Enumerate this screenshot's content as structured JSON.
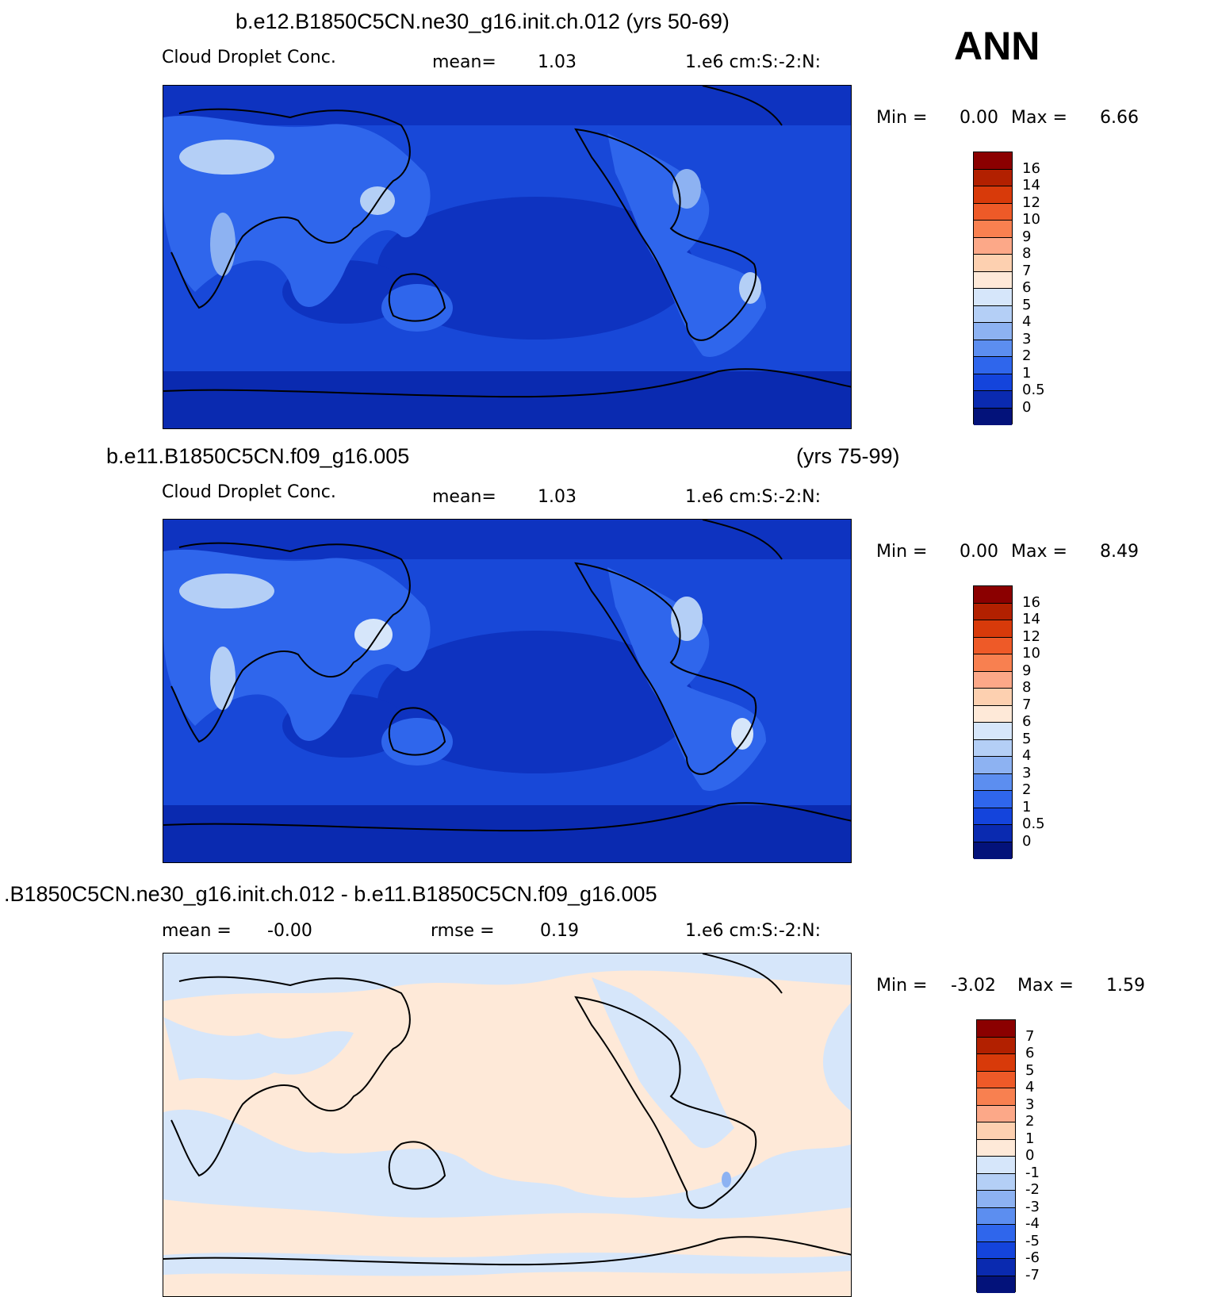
{
  "season_label": "ANN",
  "panels": [
    {
      "title": "b.e12.B1850C5CN.ne30_g16.init.ch.012 (yrs 50-69)",
      "title_right": "",
      "variable": "Cloud Droplet Conc.",
      "stat_label": "mean=",
      "stat_value": "1.03",
      "stat2_label": "",
      "stat2_value": "",
      "units": "1.e6 cm:S:-2:N:",
      "min_label": "Min =",
      "min_value": "0.00",
      "max_label": "Max =",
      "max_value": "6.66",
      "colorbar_labels": [
        "16",
        "14",
        "12",
        "10",
        "9",
        "8",
        "7",
        "6",
        "5",
        "4",
        "3",
        "2",
        "1",
        "0.5",
        "0"
      ],
      "colorbar_colors": [
        "#8b0000",
        "#b22000",
        "#d83a0a",
        "#ee5a28",
        "#f88050",
        "#fca888",
        "#fdd0b0",
        "#fee9d8",
        "#d6e6fa",
        "#b4cff6",
        "#8db2f2",
        "#5c8ef0",
        "#2f66ec",
        "#1444dc",
        "#0a2ab0",
        "#03127a"
      ],
      "background_color": "#1848d8"
    },
    {
      "title": "b.e11.B1850C5CN.f09_g16.005",
      "title_right": "(yrs 75-99)",
      "variable": "Cloud Droplet Conc.",
      "stat_label": "mean=",
      "stat_value": "1.03",
      "stat2_label": "",
      "stat2_value": "",
      "units": "1.e6 cm:S:-2:N:",
      "min_label": "Min =",
      "min_value": "0.00",
      "max_label": "Max =",
      "max_value": "8.49",
      "colorbar_labels": [
        "16",
        "14",
        "12",
        "10",
        "9",
        "8",
        "7",
        "6",
        "5",
        "4",
        "3",
        "2",
        "1",
        "0.5",
        "0"
      ],
      "colorbar_colors": [
        "#8b0000",
        "#b22000",
        "#d83a0a",
        "#ee5a28",
        "#f88050",
        "#fca888",
        "#fdd0b0",
        "#fee9d8",
        "#d6e6fa",
        "#b4cff6",
        "#8db2f2",
        "#5c8ef0",
        "#2f66ec",
        "#1444dc",
        "#0a2ab0",
        "#03127a"
      ],
      "background_color": "#1848d8"
    },
    {
      "title": ".B1850C5CN.ne30_g16.init.ch.012 - b.e11.B1850C5CN.f09_g16.005",
      "title_right": "",
      "variable": "",
      "stat_label": "mean =",
      "stat_value": "-0.00",
      "stat2_label": "rmse =",
      "stat2_value": "0.19",
      "units": "1.e6 cm:S:-2:N:",
      "min_label": "Min =",
      "min_value": "-3.02",
      "max_label": "Max =",
      "max_value": "1.59",
      "colorbar_labels": [
        "7",
        "6",
        "5",
        "4",
        "3",
        "2",
        "1",
        "0",
        "-1",
        "-2",
        "-3",
        "-4",
        "-5",
        "-6",
        "-7"
      ],
      "colorbar_colors": [
        "#8b0000",
        "#b22000",
        "#d83a0a",
        "#ee5a28",
        "#f88050",
        "#fca888",
        "#fdd0b0",
        "#fee9d8",
        "#d6e6fa",
        "#b4cff6",
        "#8db2f2",
        "#5c8ef0",
        "#2f66ec",
        "#1444dc",
        "#0a2ab0",
        "#03127a"
      ],
      "background_color": "#fee9d8"
    }
  ]
}
